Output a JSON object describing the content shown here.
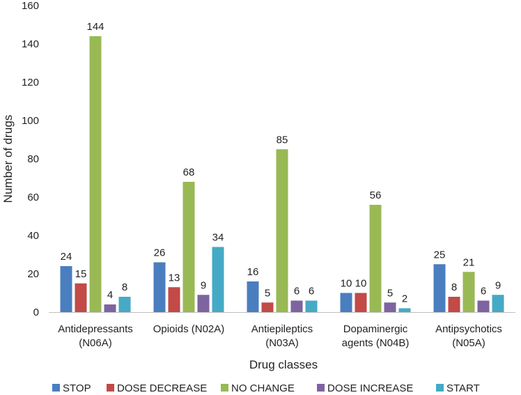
{
  "chart_data": {
    "type": "bar",
    "title": "",
    "xlabel": "Drug classes",
    "ylabel": "Number of drugs",
    "ylim": [
      0,
      160
    ],
    "yticks": [
      0,
      20,
      40,
      60,
      80,
      100,
      120,
      140,
      160
    ],
    "grid": false,
    "legend_position": "bottom",
    "categories": [
      [
        "Antidepressants",
        "(N06A)"
      ],
      [
        "Opioids (N02A)"
      ],
      [
        "Antiepileptics",
        "(N03A)"
      ],
      [
        "Dopaminergic",
        "agents (N04B)"
      ],
      [
        "Antipsychotics",
        "(N05A)"
      ]
    ],
    "series": [
      {
        "name": "STOP",
        "color": "#4a7ebf",
        "values": [
          24,
          26,
          16,
          10,
          25
        ]
      },
      {
        "name": "DOSE DECREASE",
        "color": "#c24a47",
        "values": [
          15,
          13,
          5,
          10,
          8
        ]
      },
      {
        "name": "NO CHANGE",
        "color": "#98b954",
        "values": [
          144,
          68,
          85,
          56,
          21
        ]
      },
      {
        "name": "DOSE INCREASE",
        "color": "#7e63a1",
        "values": [
          4,
          9,
          6,
          5,
          6
        ]
      },
      {
        "name": "START",
        "color": "#45aac5",
        "values": [
          8,
          34,
          6,
          2,
          9
        ]
      }
    ]
  }
}
